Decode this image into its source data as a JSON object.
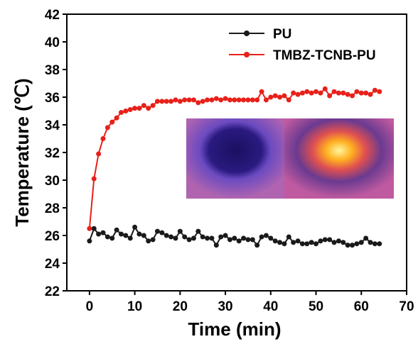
{
  "chart_data": {
    "type": "line",
    "x_label": "Time (min)",
    "y_label": "Temperature (℃)",
    "xlim": [
      -5,
      70
    ],
    "ylim": [
      22,
      42
    ],
    "xticks": [
      0,
      10,
      20,
      30,
      40,
      50,
      60,
      70
    ],
    "yticks": [
      22,
      24,
      26,
      28,
      30,
      32,
      34,
      36,
      38,
      40,
      42
    ],
    "legend": "upper right",
    "x": [
      0,
      1,
      2,
      3,
      4,
      5,
      6,
      7,
      8,
      9,
      10,
      11,
      12,
      13,
      14,
      15,
      16,
      17,
      18,
      19,
      20,
      21,
      22,
      23,
      24,
      25,
      26,
      27,
      28,
      29,
      30,
      31,
      32,
      33,
      34,
      35,
      36,
      37,
      38,
      39,
      40,
      41,
      42,
      43,
      44,
      45,
      46,
      47,
      48,
      49,
      50,
      51,
      52,
      53,
      54,
      55,
      56,
      57,
      58,
      59,
      60,
      61,
      62,
      63,
      64
    ],
    "series": [
      {
        "name": "PU",
        "color": "#1a1a1a",
        "values": [
          25.6,
          26.5,
          26.1,
          26.2,
          25.9,
          25.8,
          26.4,
          26.1,
          26.0,
          25.8,
          26.6,
          26.1,
          26.0,
          25.6,
          25.7,
          26.3,
          26.2,
          26.0,
          25.9,
          25.8,
          26.3,
          25.9,
          25.7,
          25.8,
          26.3,
          25.9,
          25.8,
          25.8,
          25.3,
          25.9,
          26.0,
          25.7,
          25.8,
          25.6,
          25.8,
          25.7,
          25.7,
          25.3,
          25.9,
          26.0,
          25.8,
          25.6,
          25.5,
          25.4,
          25.9,
          25.5,
          25.6,
          25.4,
          25.4,
          25.5,
          25.4,
          25.6,
          25.7,
          25.7,
          25.5,
          25.6,
          25.5,
          25.3,
          25.3,
          25.4,
          25.5,
          25.8,
          25.5,
          25.4,
          25.4
        ]
      },
      {
        "name": "TMBZ-TCNB-PU",
        "color": "#e8201a",
        "values": [
          26.5,
          30.1,
          31.9,
          33.0,
          33.8,
          34.2,
          34.5,
          34.9,
          35.0,
          35.1,
          35.2,
          35.2,
          35.4,
          35.2,
          35.4,
          35.7,
          35.7,
          35.7,
          35.7,
          35.8,
          35.7,
          35.8,
          35.8,
          35.8,
          35.6,
          35.7,
          35.8,
          35.8,
          35.9,
          35.8,
          35.9,
          35.8,
          35.8,
          35.8,
          35.8,
          35.8,
          35.8,
          35.8,
          36.4,
          35.8,
          36.0,
          36.1,
          36.0,
          36.1,
          35.8,
          36.3,
          36.2,
          36.3,
          36.4,
          36.3,
          36.4,
          36.3,
          36.6,
          36.1,
          36.4,
          36.3,
          36.3,
          36.2,
          36.1,
          36.4,
          36.3,
          36.3,
          36.2,
          36.5,
          36.4
        ]
      }
    ]
  }
}
